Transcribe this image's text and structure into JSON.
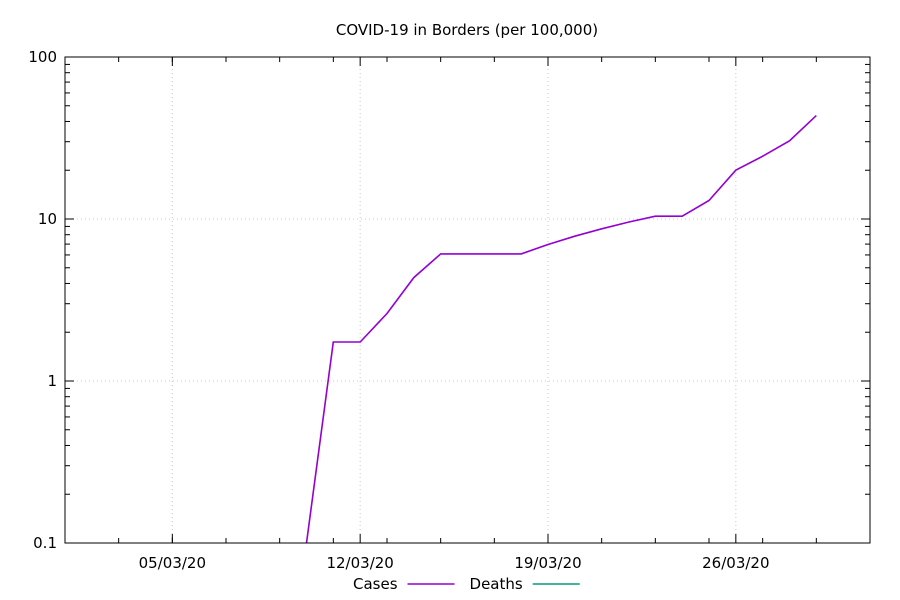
{
  "chart_data": {
    "type": "line",
    "title": "COVID-19 in Borders (per 100,000)",
    "xlabel": "",
    "ylabel": "",
    "x_scale": "date",
    "y_scale": "log",
    "xlim": [
      "2020-03-01",
      "2020-03-31"
    ],
    "ylim": [
      0.1,
      100
    ],
    "x_ticks": [
      {
        "date": "2020-03-05",
        "label": "05/03/20"
      },
      {
        "date": "2020-03-12",
        "label": "12/03/20"
      },
      {
        "date": "2020-03-19",
        "label": "19/03/20"
      },
      {
        "date": "2020-03-26",
        "label": "26/03/20"
      }
    ],
    "y_ticks": [
      {
        "value": 0.1,
        "label": "0.1"
      },
      {
        "value": 1,
        "label": "1"
      },
      {
        "value": 10,
        "label": "10"
      },
      {
        "value": 100,
        "label": "100"
      }
    ],
    "grid": true,
    "legend_position": "bottom-center",
    "series": [
      {
        "name": "Cases",
        "color": "#9400d3",
        "points": [
          {
            "x": "2020-03-10",
            "y": 0.1
          },
          {
            "x": "2020-03-11",
            "y": 1.74
          },
          {
            "x": "2020-03-12",
            "y": 1.74
          },
          {
            "x": "2020-03-13",
            "y": 2.61
          },
          {
            "x": "2020-03-14",
            "y": 4.35
          },
          {
            "x": "2020-03-15",
            "y": 6.09
          },
          {
            "x": "2020-03-16",
            "y": 6.09
          },
          {
            "x": "2020-03-17",
            "y": 6.09
          },
          {
            "x": "2020-03-18",
            "y": 6.09
          },
          {
            "x": "2020-03-19",
            "y": 6.96
          },
          {
            "x": "2020-03-20",
            "y": 7.83
          },
          {
            "x": "2020-03-21",
            "y": 8.7
          },
          {
            "x": "2020-03-22",
            "y": 9.57
          },
          {
            "x": "2020-03-23",
            "y": 10.4
          },
          {
            "x": "2020-03-24",
            "y": 10.4
          },
          {
            "x": "2020-03-25",
            "y": 13.0
          },
          {
            "x": "2020-03-26",
            "y": 20.0
          },
          {
            "x": "2020-03-27",
            "y": 24.4
          },
          {
            "x": "2020-03-28",
            "y": 30.4
          },
          {
            "x": "2020-03-29",
            "y": 43.5
          }
        ]
      },
      {
        "name": "Deaths",
        "color": "#009e73",
        "points": []
      }
    ]
  }
}
